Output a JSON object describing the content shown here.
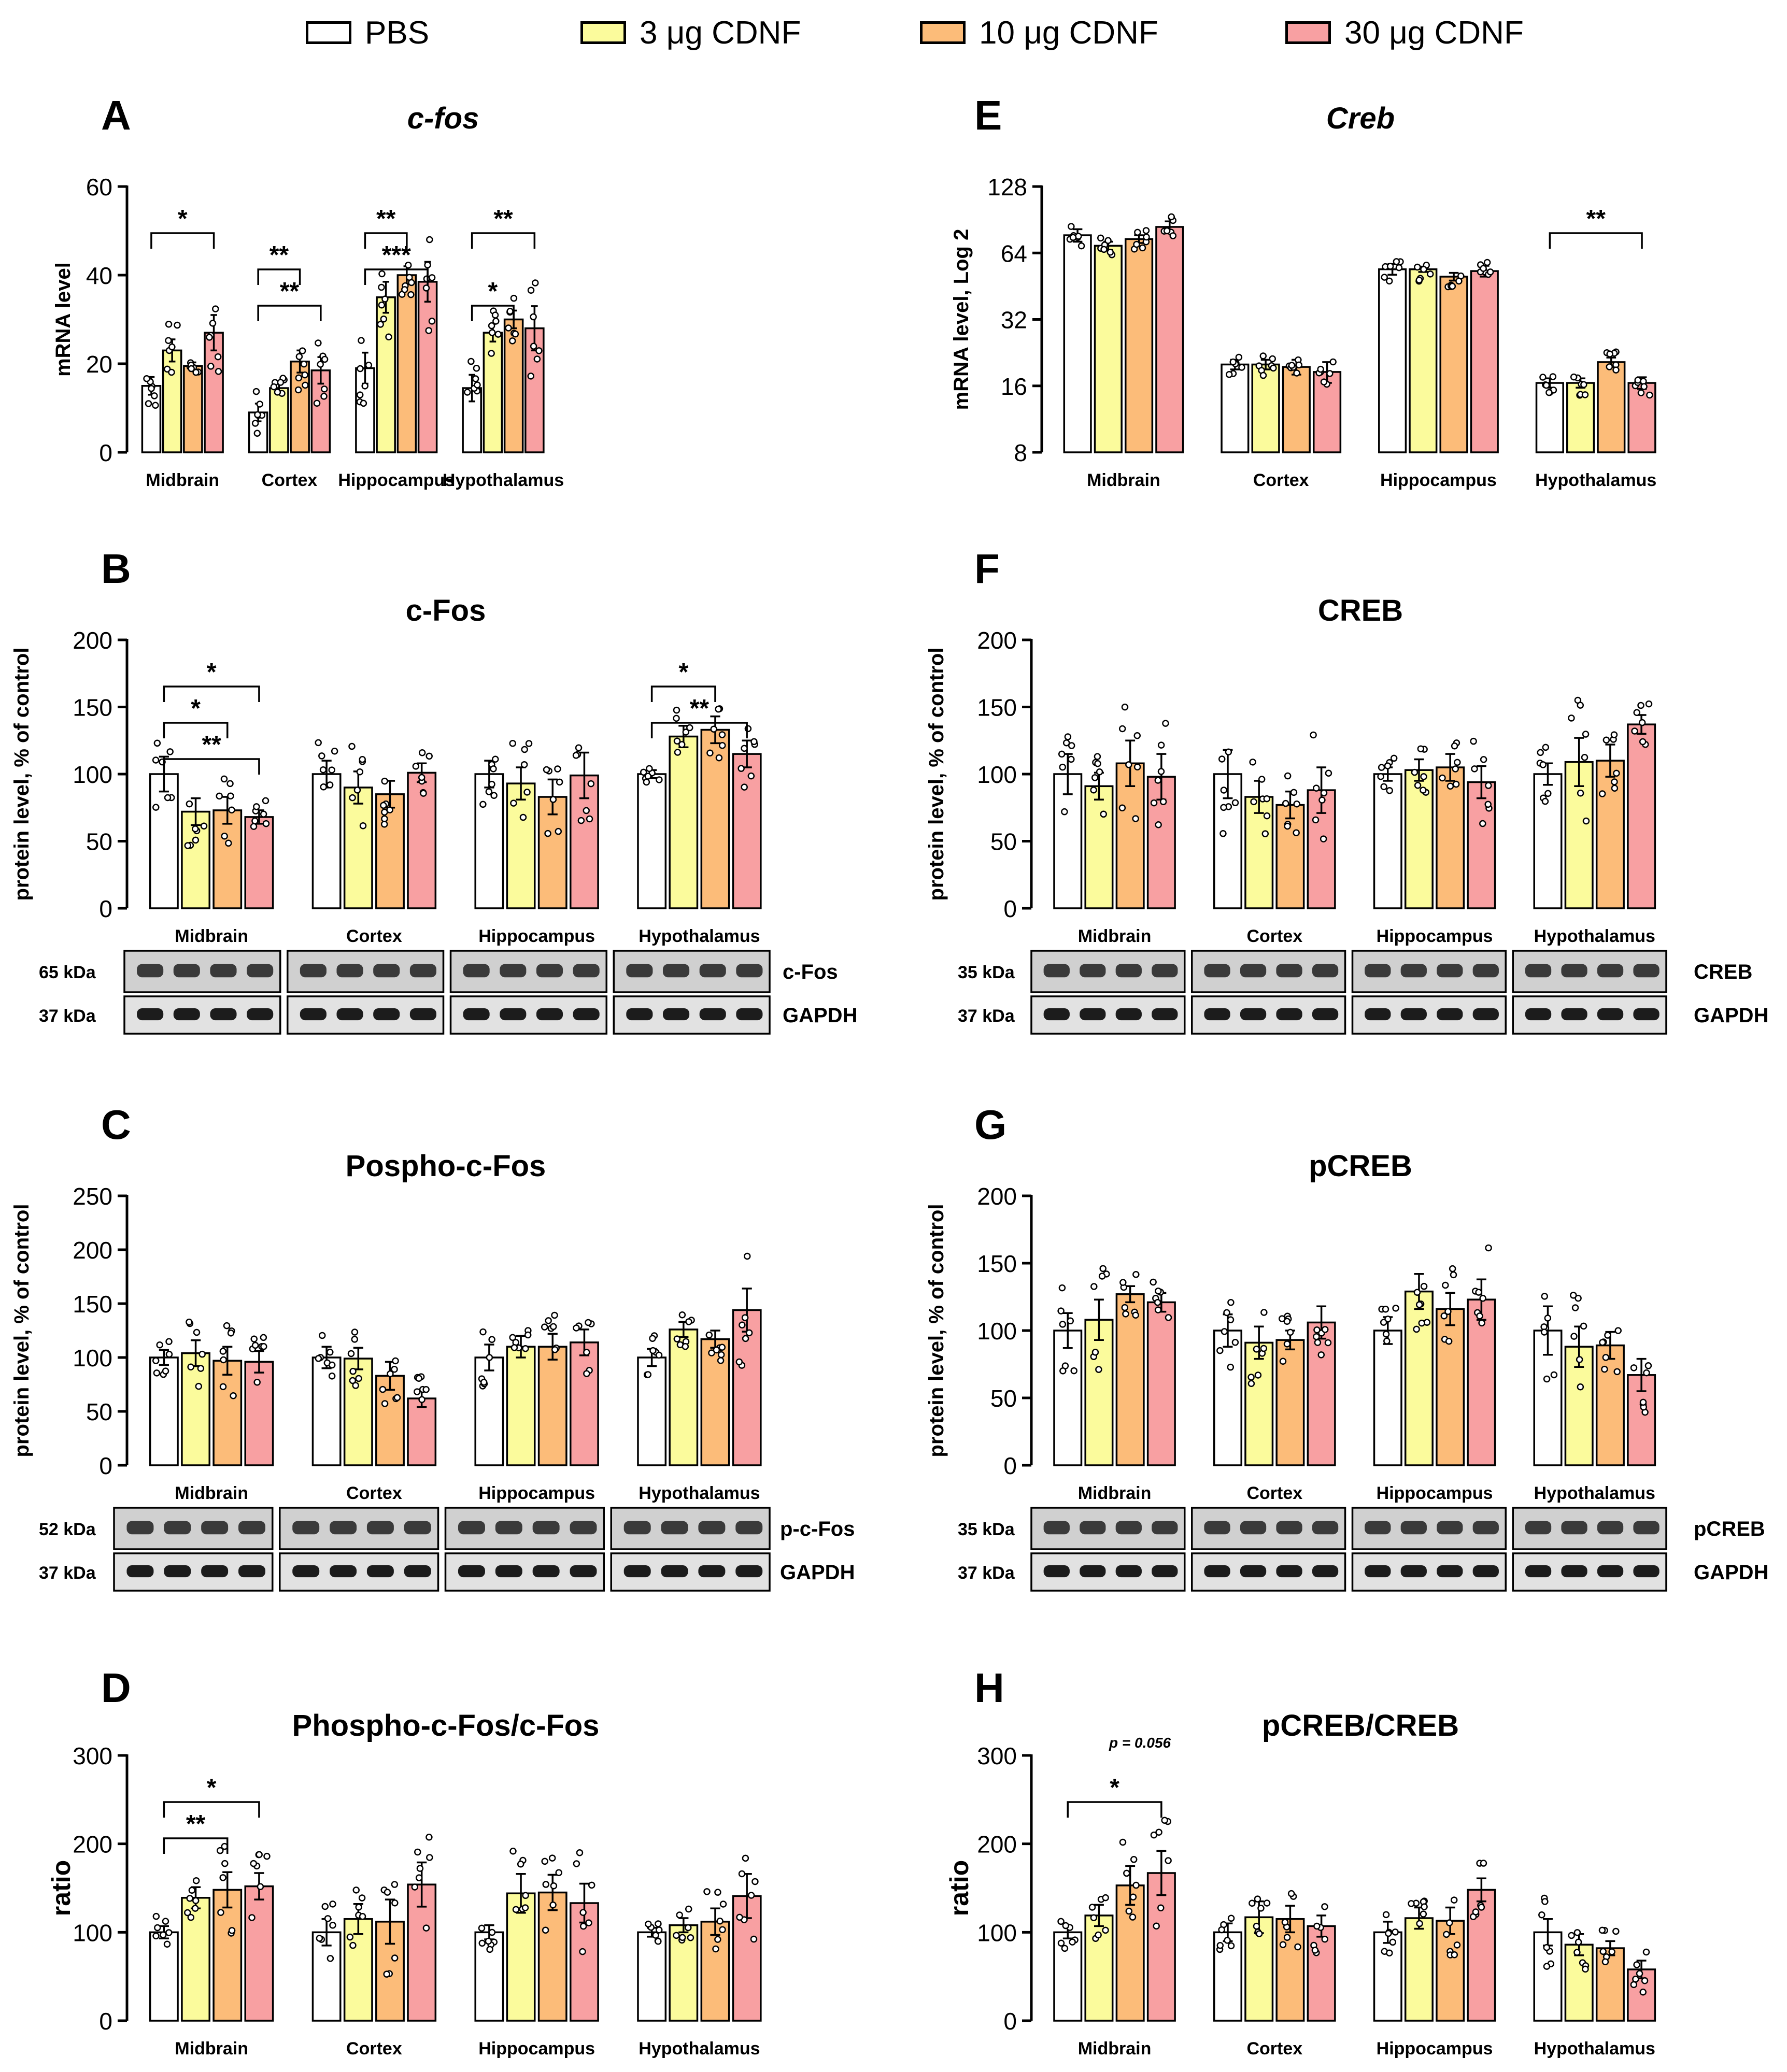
{
  "legend": [
    {
      "label": "PBS",
      "color": "#ffffff"
    },
    {
      "label": "3 μg CDNF",
      "color": "#fbfb9c"
    },
    {
      "label": "10 μg CDNF",
      "color": "#fcbc79"
    },
    {
      "label": "30 μg CDNF",
      "color": "#f8a0a2"
    }
  ],
  "regions": [
    "Midbrain",
    "Cortex",
    "Hippocampus",
    "Hypothalamus"
  ],
  "chart_data": [
    {
      "panel": "A",
      "type": "bar",
      "title": "c-fos",
      "ylabel": "mRNA level",
      "ylim": [
        0,
        60
      ],
      "yticks": [
        "0",
        "20",
        "40",
        "60"
      ],
      "categories": [
        "Midbrain",
        "Cortex",
        "Hippocampus",
        "Hypothalamus"
      ],
      "series": [
        {
          "name": "PBS",
          "values": [
            15,
            9,
            19,
            14.5
          ],
          "errors": [
            2,
            2,
            3.5,
            3
          ]
        },
        {
          "name": "3 μg CDNF",
          "values": [
            23,
            14.5,
            35,
            27
          ],
          "errors": [
            2.5,
            1,
            3.5,
            2
          ]
        },
        {
          "name": "10 μg CDNF",
          "values": [
            19.5,
            20.5,
            40,
            30
          ],
          "errors": [
            0.8,
            2.5,
            2,
            2
          ]
        },
        {
          "name": "30 μg CDNF",
          "values": [
            27,
            18.5,
            38.5,
            28
          ],
          "errors": [
            4,
            3,
            4.5,
            5
          ]
        }
      ],
      "significance": [
        "*",
        "**",
        "**",
        "**",
        "***",
        "*",
        "**"
      ]
    },
    {
      "panel": "E",
      "type": "bar",
      "title": "Creb",
      "ylabel": "mRNA level, Log 2",
      "ylim": [
        8,
        128
      ],
      "yticks": [
        "8",
        "16",
        "32",
        "64",
        "128"
      ],
      "log": true,
      "categories": [
        "Midbrain",
        "Cortex",
        "Hippocampus",
        "Hypothalamus"
      ],
      "series": [
        {
          "name": "PBS",
          "values": [
            77,
            20,
            54,
            16.5
          ],
          "errors": [
            5,
            1,
            3,
            0.8
          ]
        },
        {
          "name": "3 μg CDNF",
          "values": [
            69,
            20,
            54,
            16.5
          ],
          "errors": [
            3,
            1,
            1.5,
            0.8
          ]
        },
        {
          "name": "10 μg CDNF",
          "values": [
            74,
            19.5,
            50,
            20.5
          ],
          "errors": [
            3,
            1.5,
            2,
            1
          ]
        },
        {
          "name": "30 μg CDNF",
          "values": [
            84,
            18.5,
            53,
            16.5
          ],
          "errors": [
            5,
            2,
            3,
            1
          ]
        }
      ],
      "significance": [
        "**"
      ]
    },
    {
      "panel": "B",
      "type": "bar",
      "title": "c-Fos",
      "ylabel": "protein level, % of control",
      "ylim": [
        0,
        200
      ],
      "yticks": [
        "0",
        "50",
        "100",
        "150",
        "200"
      ],
      "categories": [
        "Midbrain",
        "Cortex",
        "Hippocampus",
        "Hypothalamus"
      ],
      "series": [
        {
          "name": "PBS",
          "values": [
            100,
            100,
            100,
            100
          ],
          "errors": [
            13,
            10,
            10,
            3
          ]
        },
        {
          "name": "3 μg CDNF",
          "values": [
            72,
            90,
            93,
            128
          ],
          "errors": [
            10,
            12,
            12,
            8
          ]
        },
        {
          "name": "10 μg CDNF",
          "values": [
            73,
            85,
            83,
            133
          ],
          "errors": [
            10,
            10,
            13,
            10
          ]
        },
        {
          "name": "30 μg CDNF",
          "values": [
            68,
            101,
            99,
            115
          ],
          "errors": [
            5,
            7,
            17,
            10
          ]
        }
      ],
      "significance": [
        "*",
        "*",
        "**",
        "*",
        "**"
      ]
    },
    {
      "panel": "F",
      "type": "bar",
      "title": "CREB",
      "ylabel": "protein level, % of control",
      "ylim": [
        0,
        200
      ],
      "yticks": [
        "0",
        "50",
        "100",
        "150",
        "200"
      ],
      "categories": [
        "Midbrain",
        "Cortex",
        "Hippocampus",
        "Hypothalamus"
      ],
      "series": [
        {
          "name": "PBS",
          "values": [
            100,
            100,
            100,
            100
          ],
          "errors": [
            15,
            18,
            5,
            8
          ]
        },
        {
          "name": "3 μg CDNF",
          "values": [
            91,
            83,
            103,
            109
          ],
          "errors": [
            10,
            12,
            8,
            18
          ]
        },
        {
          "name": "10 μg CDNF",
          "values": [
            108,
            77,
            105,
            110
          ],
          "errors": [
            17,
            10,
            10,
            12
          ]
        },
        {
          "name": "30 μg CDNF",
          "values": [
            98,
            88,
            94,
            137
          ],
          "errors": [
            17,
            17,
            12,
            7
          ]
        }
      ],
      "significance": []
    },
    {
      "panel": "C",
      "type": "bar",
      "title": "Pospho-c-Fos",
      "ylabel": "protein level, % of control",
      "ylim": [
        0,
        250
      ],
      "yticks": [
        "0",
        "50",
        "100",
        "150",
        "200",
        "250"
      ],
      "categories": [
        "Midbrain",
        "Cortex",
        "Hippocampus",
        "Hypothalamus"
      ],
      "series": [
        {
          "name": "PBS",
          "values": [
            100,
            100,
            100,
            100
          ],
          "errors": [
            7,
            10,
            12,
            8
          ]
        },
        {
          "name": "3 μg CDNF",
          "values": [
            104,
            99,
            110,
            126
          ],
          "errors": [
            12,
            10,
            10,
            7
          ]
        },
        {
          "name": "10 μg CDNF",
          "values": [
            97,
            83,
            110,
            117
          ],
          "errors": [
            13,
            13,
            12,
            8
          ]
        },
        {
          "name": "30 μg CDNF",
          "values": [
            96,
            62,
            114,
            144
          ],
          "errors": [
            10,
            8,
            12,
            20
          ]
        }
      ],
      "significance": []
    },
    {
      "panel": "G",
      "type": "bar",
      "title": "pCREB",
      "ylabel": "protein level, % of control",
      "ylim": [
        0,
        200
      ],
      "yticks": [
        "0",
        "50",
        "100",
        "150",
        "200"
      ],
      "categories": [
        "Midbrain",
        "Cortex",
        "Hippocampus",
        "Hypothalamus"
      ],
      "series": [
        {
          "name": "PBS",
          "values": [
            100,
            100,
            100,
            100
          ],
          "errors": [
            13,
            12,
            10,
            18
          ]
        },
        {
          "name": "3 μg CDNF",
          "values": [
            108,
            91,
            129,
            88
          ],
          "errors": [
            15,
            12,
            13,
            15
          ]
        },
        {
          "name": "10 μg CDNF",
          "values": [
            127,
            93,
            116,
            89
          ],
          "errors": [
            6,
            7,
            12,
            10
          ]
        },
        {
          "name": "30 μg CDNF",
          "values": [
            121,
            106,
            123,
            67
          ],
          "errors": [
            7,
            12,
            15,
            12
          ]
        }
      ],
      "significance": []
    },
    {
      "panel": "D",
      "type": "bar",
      "title": "Phospho-c-Fos/c-Fos",
      "ylabel": "ratio",
      "ylim": [
        0,
        300
      ],
      "yticks": [
        "0",
        "100",
        "200",
        "300"
      ],
      "categories": [
        "Midbrain",
        "Cortex",
        "Hippocampus",
        "Hypothalamus"
      ],
      "series": [
        {
          "name": "PBS",
          "values": [
            100,
            100,
            100,
            100
          ],
          "errors": [
            7,
            15,
            8,
            5
          ]
        },
        {
          "name": "3 μg CDNF",
          "values": [
            139,
            115,
            144,
            108
          ],
          "errors": [
            12,
            17,
            22,
            8
          ]
        },
        {
          "name": "10 μg CDNF",
          "values": [
            148,
            112,
            145,
            112
          ],
          "errors": [
            20,
            25,
            20,
            15
          ]
        },
        {
          "name": "30 μg CDNF",
          "values": [
            152,
            154,
            133,
            141
          ],
          "errors": [
            15,
            25,
            22,
            25
          ]
        }
      ],
      "significance": [
        "*",
        "**"
      ]
    },
    {
      "panel": "H",
      "type": "bar",
      "title": "pCREB/CREB",
      "ylabel": "ratio",
      "ylim": [
        0,
        300
      ],
      "yticks": [
        "0",
        "100",
        "200",
        "300"
      ],
      "categories": [
        "Midbrain",
        "Cortex",
        "Hippocampus",
        "Hypothalamus"
      ],
      "series": [
        {
          "name": "PBS",
          "values": [
            100,
            100,
            100,
            100
          ],
          "errors": [
            7,
            10,
            12,
            15
          ]
        },
        {
          "name": "3 μg CDNF",
          "values": [
            119,
            117,
            116,
            86
          ],
          "errors": [
            12,
            18,
            12,
            12
          ]
        },
        {
          "name": "10 μg CDNF",
          "values": [
            153,
            115,
            113,
            82
          ],
          "errors": [
            22,
            15,
            15,
            8
          ]
        },
        {
          "name": "30 μg CDNF",
          "values": [
            167,
            107,
            148,
            58
          ],
          "errors": [
            25,
            12,
            13,
            10
          ]
        }
      ],
      "significance": [
        "*"
      ],
      "annotation": "p = 0.056"
    }
  ],
  "blots": {
    "B": {
      "rows": [
        {
          "kda": "65 kDa",
          "protein": "c-Fos"
        },
        {
          "kda": "37 kDa",
          "protein": "GAPDH"
        }
      ]
    },
    "F": {
      "rows": [
        {
          "kda": "35 kDa",
          "protein": "CREB"
        },
        {
          "kda": "37 kDa",
          "protein": "GAPDH"
        }
      ]
    },
    "C": {
      "rows": [
        {
          "kda": "52 kDa",
          "protein": "p-c-Fos"
        },
        {
          "kda": "37 kDa",
          "protein": "GAPDH"
        }
      ]
    },
    "G": {
      "rows": [
        {
          "kda": "35 kDa",
          "protein": "pCREB"
        },
        {
          "kda": "37 kDa",
          "protein": "GAPDH"
        }
      ]
    }
  }
}
